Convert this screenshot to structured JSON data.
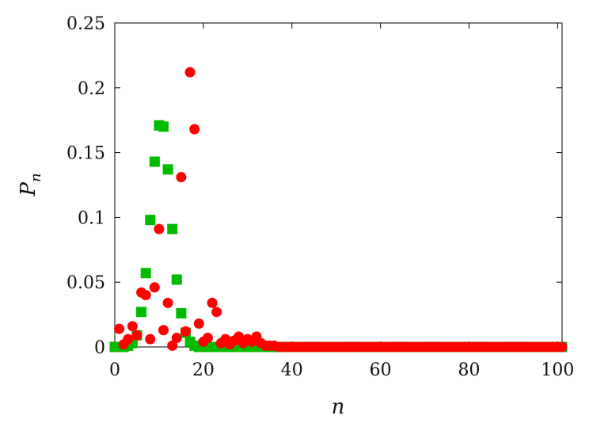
{
  "chart_data": {
    "type": "scatter",
    "xlabel": "n",
    "ylabel": "P",
    "ylabel_subscript": "n",
    "xlim": [
      0,
      101
    ],
    "ylim": [
      0,
      0.25
    ],
    "x_ticks": [
      "0",
      "20",
      "40",
      "60",
      "80",
      "100"
    ],
    "y_ticks": [
      "0",
      "0.05",
      "0.1",
      "0.15",
      "0.2",
      "0.25"
    ],
    "grid": false,
    "legend": "none",
    "series": [
      {
        "marker": "square",
        "color": "#00bb00",
        "x": [
          0,
          1,
          2,
          3,
          4,
          5,
          6,
          7,
          8,
          9,
          10,
          11,
          12,
          13,
          14,
          15,
          16,
          17,
          18,
          19,
          20,
          21,
          22,
          23,
          24,
          25,
          26,
          27,
          28,
          29,
          30,
          31,
          32,
          33,
          34,
          35,
          36,
          37,
          38,
          39,
          40,
          41,
          42,
          43,
          44,
          45,
          46,
          47,
          48,
          49,
          50,
          51,
          52,
          53,
          54,
          55,
          56,
          57,
          58,
          59,
          60,
          61,
          62,
          63,
          64,
          65,
          66,
          67,
          68,
          69,
          70,
          71,
          72,
          73,
          74,
          75,
          76,
          77,
          78,
          79,
          80,
          81,
          82,
          83,
          84,
          85,
          86,
          87,
          88,
          89,
          90,
          91,
          92,
          93,
          94,
          95,
          96,
          97,
          98,
          99,
          100,
          101
        ],
        "y": [
          0,
          0,
          0,
          0.001,
          0.003,
          0.009,
          0.027,
          0.057,
          0.098,
          0.143,
          0.171,
          0.17,
          0.137,
          0.091,
          0.052,
          0.026,
          0.011,
          0.004,
          0.001,
          0,
          0,
          0,
          0,
          0,
          0,
          0,
          0,
          0,
          0,
          0,
          0,
          0,
          0,
          0,
          0,
          0,
          0,
          0,
          0,
          0,
          0,
          0,
          0,
          0,
          0,
          0,
          0,
          0,
          0,
          0,
          0,
          0,
          0,
          0,
          0,
          0,
          0,
          0,
          0,
          0,
          0,
          0,
          0,
          0,
          0,
          0,
          0,
          0,
          0,
          0,
          0,
          0,
          0,
          0,
          0,
          0,
          0,
          0,
          0,
          0,
          0,
          0,
          0,
          0,
          0,
          0,
          0,
          0,
          0,
          0,
          0,
          0,
          0,
          0,
          0,
          0,
          0,
          0,
          0,
          0,
          0,
          0
        ]
      },
      {
        "marker": "circle",
        "color": "#ff0000",
        "x": [
          1,
          2,
          3,
          4,
          5,
          6,
          7,
          8,
          9,
          10,
          11,
          12,
          13,
          14,
          15,
          16,
          17,
          18,
          19,
          20,
          21,
          22,
          23,
          24,
          25,
          26,
          27,
          28,
          29,
          30,
          31,
          32,
          33,
          34,
          35,
          36,
          37,
          38,
          39,
          40,
          41,
          42,
          43,
          44,
          45,
          46,
          47,
          48,
          49,
          50,
          51,
          52,
          53,
          54,
          55,
          56,
          57,
          58,
          59,
          60,
          61,
          62,
          63,
          64,
          65,
          66,
          67,
          68,
          69,
          70,
          71,
          72,
          73,
          74,
          75,
          76,
          77,
          78,
          79,
          80,
          81,
          82,
          83,
          84,
          85,
          86,
          87,
          88,
          89,
          90,
          91,
          92,
          93,
          94,
          95,
          96,
          97,
          98,
          99,
          100,
          101
        ],
        "y": [
          0.014,
          0.002,
          0.006,
          0.016,
          0.009,
          0.042,
          0.04,
          0.006,
          0.046,
          0.091,
          0.013,
          0.034,
          0.001,
          0.007,
          0.131,
          0.012,
          0.212,
          0.168,
          0.018,
          0.004,
          0.007,
          0.034,
          0.027,
          0.003,
          0.006,
          0.002,
          0.005,
          0.008,
          0.003,
          0.006,
          0.004,
          0.008,
          0.003,
          0.001,
          0.001,
          0.001,
          0,
          0,
          0,
          0,
          0,
          0,
          0,
          0,
          0,
          0,
          0,
          0,
          0,
          0,
          0,
          0,
          0,
          0,
          0,
          0,
          0,
          0,
          0,
          0,
          0,
          0,
          0,
          0,
          0,
          0,
          0,
          0,
          0,
          0,
          0,
          0,
          0,
          0,
          0,
          0,
          0,
          0,
          0,
          0,
          0,
          0,
          0,
          0,
          0,
          0,
          0,
          0,
          0,
          0,
          0,
          0,
          0,
          0,
          0,
          0,
          0,
          0,
          0,
          0,
          0
        ]
      }
    ]
  }
}
